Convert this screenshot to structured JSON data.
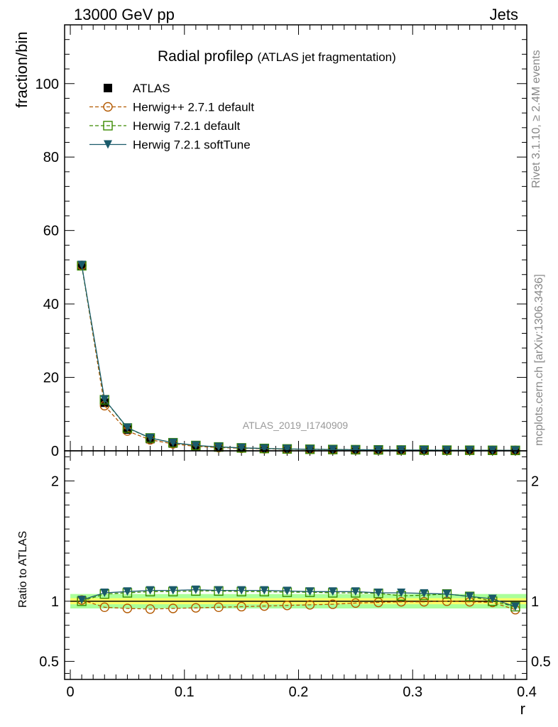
{
  "header": {
    "left": "13000 GeV pp",
    "right": "Jets"
  },
  "title": {
    "main": "Radial profile",
    "symbol": "ρ",
    "sub": "(ATLAS jet fragmentation)"
  },
  "side_labels": {
    "rivet": "Rivet 3.1.10, ≥ 2.4M events",
    "mcplots": "mcplots.cern.ch [arXiv:1306.3436]"
  },
  "watermark": "ATLAS_2019_I1740909",
  "chart_data": [
    {
      "type": "line",
      "panel": "main",
      "xlabel": "",
      "ylabel": "fraction/bin",
      "xlim": [
        -0.005,
        0.4
      ],
      "ylim": [
        0,
        116
      ],
      "yticks": [
        0,
        20,
        40,
        60,
        80,
        100
      ],
      "ytick_labels": [
        "0",
        "20",
        "40",
        "60",
        "80",
        "100"
      ],
      "x": [
        0.01,
        0.03,
        0.05,
        0.07,
        0.09,
        0.11,
        0.13,
        0.15,
        0.17,
        0.19,
        0.21,
        0.23,
        0.25,
        0.27,
        0.29,
        0.31,
        0.33,
        0.35,
        0.37,
        0.39
      ],
      "legend_position": "top-left",
      "series": [
        {
          "name": "ATLAS",
          "style": "data",
          "marker": "square-filled",
          "color": "#000000",
          "values": [
            50.3,
            13.1,
            5.8,
            3.2,
            2.0,
            1.3,
            0.95,
            0.72,
            0.58,
            0.47,
            0.39,
            0.33,
            0.28,
            0.24,
            0.21,
            0.19,
            0.17,
            0.15,
            0.14,
            0.13
          ]
        },
        {
          "name": "Herwig++ 2.7.1 default",
          "style": "dashed",
          "marker": "circle-open",
          "color": "#b35900",
          "values": [
            50.5,
            12.3,
            5.4,
            3.0,
            1.9,
            1.22,
            0.9,
            0.69,
            0.56,
            0.45,
            0.38,
            0.32,
            0.27,
            0.23,
            0.2,
            0.18,
            0.16,
            0.14,
            0.13,
            0.12
          ]
        },
        {
          "name": "Herwig 7.2.1 default",
          "style": "dashed",
          "marker": "square-open",
          "color": "#3a8a00",
          "values": [
            50.4,
            13.9,
            6.2,
            3.5,
            2.2,
            1.45,
            1.05,
            0.8,
            0.64,
            0.51,
            0.43,
            0.36,
            0.31,
            0.26,
            0.22,
            0.2,
            0.18,
            0.16,
            0.14,
            0.12
          ]
        },
        {
          "name": "Herwig 7.2.1 softTune",
          "style": "solid",
          "marker": "triangle-down-filled",
          "color": "#1a5a6a",
          "values": [
            50.6,
            14.0,
            6.3,
            3.5,
            2.2,
            1.46,
            1.06,
            0.81,
            0.64,
            0.51,
            0.43,
            0.36,
            0.31,
            0.27,
            0.23,
            0.2,
            0.18,
            0.16,
            0.14,
            0.13
          ]
        }
      ]
    },
    {
      "type": "line",
      "panel": "ratio",
      "xlabel": "r",
      "ylabel": "Ratio to ATLAS",
      "xlim": [
        -0.005,
        0.4
      ],
      "ylim": [
        0.35,
        2.25
      ],
      "yticks": [
        0.5,
        1,
        2
      ],
      "ytick_labels": [
        "0.5",
        "1",
        "2"
      ],
      "xticks": [
        0,
        0.1,
        0.2,
        0.3,
        0.4
      ],
      "xtick_labels": [
        "0",
        "0.1",
        "0.2",
        "0.3",
        "0.4"
      ],
      "x": [
        0.01,
        0.03,
        0.05,
        0.07,
        0.09,
        0.11,
        0.13,
        0.15,
        0.17,
        0.19,
        0.21,
        0.23,
        0.25,
        0.27,
        0.29,
        0.31,
        0.33,
        0.35,
        0.37,
        0.39
      ],
      "band": {
        "inner": 0.025,
        "outer": 0.06,
        "inner_color": "#ffff66",
        "outer_color": "#aaff99"
      },
      "series": [
        {
          "name": "Herwig++ 2.7.1 default",
          "style": "dashed",
          "marker": "circle-open",
          "color": "#b35900",
          "values": [
            1.01,
            0.95,
            0.94,
            0.935,
            0.94,
            0.945,
            0.95,
            0.955,
            0.96,
            0.965,
            0.97,
            0.975,
            0.985,
            0.99,
            0.995,
            0.995,
            1.0,
            0.995,
            0.99,
            0.93
          ]
        },
        {
          "name": "Herwig 7.2.1 default",
          "style": "dashed",
          "marker": "square-open",
          "color": "#3a8a00",
          "values": [
            1.0,
            1.06,
            1.07,
            1.08,
            1.08,
            1.085,
            1.085,
            1.08,
            1.08,
            1.075,
            1.075,
            1.07,
            1.07,
            1.065,
            1.045,
            1.05,
            1.06,
            1.04,
            1.0,
            0.955
          ]
        },
        {
          "name": "Herwig 7.2.1 softTune",
          "style": "solid",
          "marker": "triangle-down-filled",
          "color": "#1a5a6a",
          "values": [
            1.01,
            1.07,
            1.08,
            1.09,
            1.09,
            1.095,
            1.09,
            1.09,
            1.09,
            1.085,
            1.08,
            1.08,
            1.08,
            1.07,
            1.07,
            1.065,
            1.06,
            1.04,
            1.02,
            0.955
          ]
        }
      ]
    }
  ]
}
